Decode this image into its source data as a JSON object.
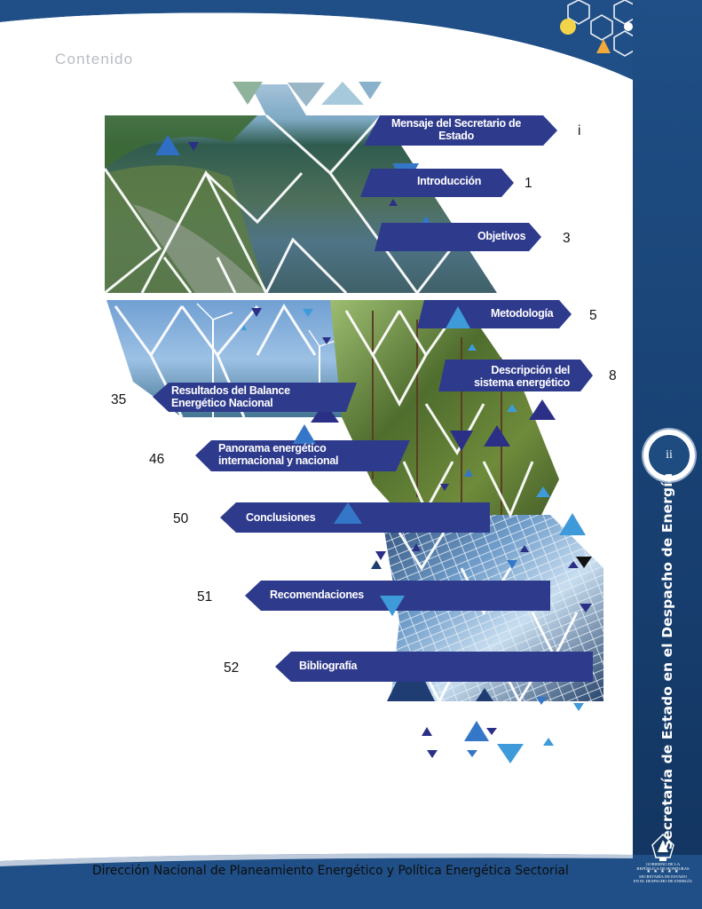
{
  "page": {
    "section_heading": "Contenido",
    "page_number": "ii",
    "vertical_title": "Secretaría de Estado en el Despacho de Energía",
    "footer": "Dirección Nacional de Planeamiento  Energético y Política Energética Sectorial"
  },
  "emblem": {
    "line1": "GOBIERNO DE LA",
    "line2": "REPÚBLICA DE HONDURAS",
    "stars": "★ ★ ★ ★ ★",
    "line3": "SECRETARÍA DE ESTADO",
    "line4": "EN EL DESPACHO DE ENERGÍA"
  },
  "toc": [
    {
      "label_line1": "Mensaje del Secretario de",
      "label_line2": "Estado",
      "page": "i"
    },
    {
      "label_line1": "Introducción",
      "label_line2": "",
      "page": "1"
    },
    {
      "label_line1": "Objetivos",
      "label_line2": "",
      "page": "3"
    },
    {
      "label_line1": "Metodología",
      "label_line2": "",
      "page": "5"
    },
    {
      "label_line1": "Descripción del",
      "label_line2": "sistema energético",
      "page": "8"
    },
    {
      "label_line1": "Resultados del Balance",
      "label_line2": "Energético Nacional",
      "page": "35"
    },
    {
      "label_line1": "Panorama energético",
      "label_line2": "internacional y nacional",
      "page": "46"
    },
    {
      "label_line1": "Conclusiones",
      "label_line2": "",
      "page": "50"
    },
    {
      "label_line1": "Recomendaciones",
      "label_line2": "",
      "page": "51"
    },
    {
      "label_line1": "Bibliografía",
      "label_line2": "",
      "page": "52"
    }
  ],
  "colors": {
    "band": "#1f4f86",
    "arrow": "#2e3a8c",
    "accent_light": "#3e9ad9",
    "accent_mid": "#2f6fc4",
    "accent_dark": "#2b2f86"
  }
}
